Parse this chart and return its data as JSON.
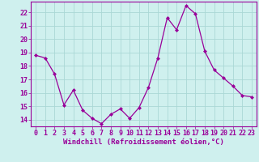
{
  "x": [
    0,
    1,
    2,
    3,
    4,
    5,
    6,
    7,
    8,
    9,
    10,
    11,
    12,
    13,
    14,
    15,
    16,
    17,
    18,
    19,
    20,
    21,
    22,
    23
  ],
  "y": [
    18.8,
    18.6,
    17.4,
    15.1,
    16.2,
    14.7,
    14.1,
    13.7,
    14.4,
    14.8,
    14.1,
    14.9,
    16.4,
    18.6,
    21.6,
    20.7,
    22.5,
    21.9,
    19.1,
    17.7,
    17.1,
    16.5,
    15.8,
    15.7
  ],
  "line_color": "#990099",
  "marker": "D",
  "marker_size": 2.0,
  "bg_color": "#cff0ee",
  "grid_color": "#aad8d5",
  "xlabel": "Windchill (Refroidissement éolien,°C)",
  "xlabel_fontsize": 6.5,
  "tick_fontsize": 6.0,
  "ylim": [
    13.5,
    22.8
  ],
  "yticks": [
    14,
    15,
    16,
    17,
    18,
    19,
    20,
    21,
    22
  ],
  "xlim": [
    -0.5,
    23.5
  ],
  "xticks": [
    0,
    1,
    2,
    3,
    4,
    5,
    6,
    7,
    8,
    9,
    10,
    11,
    12,
    13,
    14,
    15,
    16,
    17,
    18,
    19,
    20,
    21,
    22,
    23
  ]
}
